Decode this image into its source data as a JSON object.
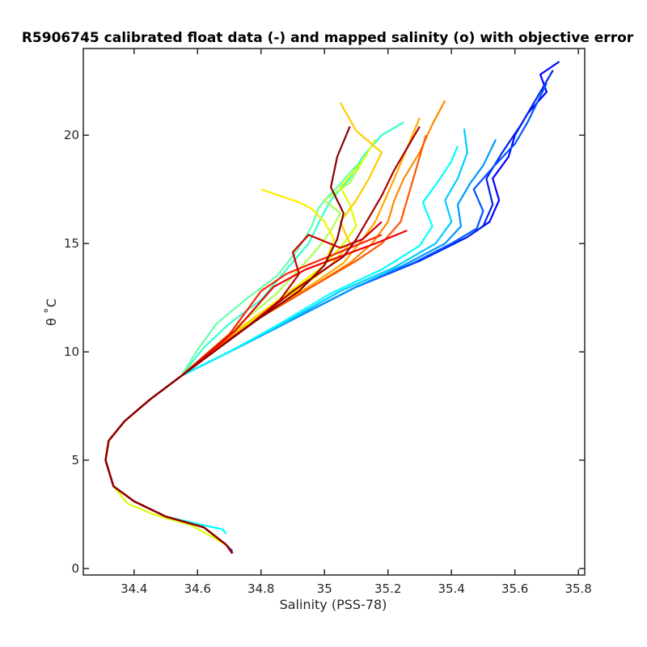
{
  "chart_data": {
    "type": "line",
    "title": "R5906745 calibrated float data (-) and mapped salinity (o) with objective error",
    "xlabel": "Salinity (PSS-78)",
    "ylabel": "θ ˚C",
    "xlim": [
      34.24,
      35.82
    ],
    "ylim": [
      -0.3,
      24.0
    ],
    "xticks": [
      "34.4",
      "34.6",
      "34.8",
      "35",
      "35.2",
      "35.4",
      "35.6",
      "35.8"
    ],
    "yticks": [
      "0",
      "5",
      "10",
      "15",
      "20"
    ],
    "grid": false,
    "legend": "none",
    "colormap": "jet",
    "series": [
      {
        "color": "#0000ff",
        "x": [
          34.71,
          34.69,
          34.62,
          34.5,
          34.4,
          34.335,
          34.31,
          34.32,
          34.37,
          34.45,
          34.55,
          34.7,
          34.9,
          35.1,
          35.3,
          35.45,
          35.52,
          35.55,
          35.53,
          35.58,
          35.6,
          35.64,
          35.7,
          35.68,
          35.74
        ],
        "y": [
          0.7,
          1.1,
          1.9,
          2.4,
          3.1,
          3.8,
          5.0,
          5.9,
          6.8,
          7.8,
          8.9,
          10.0,
          11.5,
          13.0,
          14.2,
          15.3,
          16.0,
          17.0,
          18.0,
          19.0,
          20.0,
          21.0,
          22.0,
          22.8,
          23.4
        ]
      },
      {
        "color": "#0022ee",
        "x": [
          34.71,
          34.69,
          34.62,
          34.5,
          34.4,
          34.335,
          34.31,
          34.32,
          34.37,
          34.45,
          34.55,
          34.7,
          34.9,
          35.1,
          35.3,
          35.45,
          35.5,
          35.53,
          35.51,
          35.56,
          35.62,
          35.66,
          35.72
        ],
        "y": [
          0.8,
          1.1,
          1.9,
          2.4,
          3.1,
          3.8,
          5.0,
          5.9,
          6.8,
          7.8,
          8.9,
          10.0,
          11.5,
          13.0,
          14.2,
          15.3,
          15.8,
          16.8,
          18.0,
          19.2,
          20.5,
          21.5,
          23.0
        ]
      },
      {
        "color": "#0055ff",
        "x": [
          34.71,
          34.69,
          34.62,
          34.5,
          34.4,
          34.335,
          34.31,
          34.32,
          34.37,
          34.45,
          34.55,
          34.7,
          34.9,
          35.1,
          35.28,
          35.4,
          35.48,
          35.5,
          35.47,
          35.53,
          35.6,
          35.64,
          35.7
        ],
        "y": [
          0.7,
          1.1,
          1.9,
          2.4,
          3.1,
          3.8,
          5.0,
          5.9,
          6.8,
          7.8,
          8.9,
          10.0,
          11.5,
          13.0,
          14.1,
          15.0,
          15.7,
          16.5,
          17.5,
          18.5,
          19.6,
          20.6,
          22.4
        ]
      },
      {
        "color": "#0099ff",
        "x": [
          34.71,
          34.69,
          34.62,
          34.5,
          34.4,
          34.335,
          34.31,
          34.32,
          34.37,
          34.45,
          34.55,
          34.7,
          34.9,
          35.1,
          35.25,
          35.38,
          35.43,
          35.42,
          35.46,
          35.5,
          35.54
        ],
        "y": [
          0.7,
          1.1,
          1.9,
          2.4,
          3.1,
          3.8,
          5.0,
          5.9,
          6.8,
          7.8,
          8.9,
          10.0,
          11.5,
          13.0,
          14.0,
          15.0,
          15.8,
          16.8,
          17.8,
          18.6,
          19.8
        ]
      },
      {
        "color": "#00ccff",
        "x": [
          34.71,
          34.69,
          34.62,
          34.5,
          34.4,
          34.335,
          34.31,
          34.32,
          34.37,
          34.45,
          34.55,
          34.7,
          34.88,
          35.05,
          35.22,
          35.35,
          35.4,
          35.38,
          35.42,
          35.45,
          35.44
        ],
        "y": [
          0.7,
          1.1,
          1.9,
          2.4,
          3.1,
          3.8,
          5.0,
          5.9,
          6.8,
          7.8,
          8.9,
          10.0,
          11.4,
          12.8,
          13.9,
          15.0,
          16.0,
          17.0,
          18.0,
          19.2,
          20.3
        ]
      },
      {
        "color": "#00ffff",
        "x": [
          34.69,
          34.68,
          34.62,
          34.5,
          34.4,
          34.335,
          34.31,
          34.32,
          34.37,
          34.45,
          34.55,
          34.7,
          34.86,
          35.02,
          35.18,
          35.3,
          35.34,
          35.31,
          35.36,
          35.4,
          35.42
        ],
        "y": [
          1.6,
          1.8,
          2.0,
          2.4,
          3.1,
          3.8,
          5.0,
          5.9,
          6.8,
          7.8,
          8.9,
          10.0,
          11.3,
          12.7,
          13.8,
          14.9,
          15.8,
          16.9,
          17.9,
          18.8,
          19.5
        ]
      },
      {
        "color": "#33ffcc",
        "x": [
          34.71,
          34.69,
          34.62,
          34.5,
          34.4,
          34.335,
          34.31,
          34.32,
          34.37,
          34.45,
          34.55,
          34.62,
          34.7,
          34.8,
          34.88,
          34.95,
          34.99,
          35.02,
          35.08,
          35.12,
          35.18,
          35.25
        ],
        "y": [
          0.7,
          1.1,
          1.9,
          2.4,
          3.1,
          3.8,
          5.0,
          5.9,
          6.8,
          7.8,
          8.9,
          10.2,
          11.3,
          12.4,
          13.8,
          15.0,
          16.2,
          17.0,
          18.0,
          19.0,
          20.0,
          20.6
        ]
      },
      {
        "color": "#66ffaa",
        "x": [
          34.71,
          34.69,
          34.62,
          34.5,
          34.4,
          34.335,
          34.31,
          34.32,
          34.37,
          34.45,
          34.55,
          34.6,
          34.66,
          34.75,
          34.85,
          34.92,
          34.96,
          34.98,
          35.0,
          35.04,
          35.1
        ],
        "y": [
          0.7,
          1.1,
          1.9,
          2.4,
          3.1,
          3.8,
          5.0,
          5.9,
          6.8,
          7.8,
          8.9,
          10.1,
          11.3,
          12.4,
          13.5,
          14.8,
          15.8,
          16.6,
          17.0,
          17.6,
          18.6
        ]
      },
      {
        "color": "#aaff55",
        "x": [
          34.71,
          34.69,
          34.62,
          34.5,
          34.4,
          34.335,
          34.31,
          34.32,
          34.37,
          34.45,
          34.55,
          34.65,
          34.75,
          34.85,
          34.92,
          34.98,
          35.02,
          35.05,
          35.0,
          35.08,
          35.12
        ],
        "y": [
          0.7,
          1.1,
          1.9,
          2.4,
          3.1,
          3.8,
          5.0,
          5.9,
          6.8,
          7.8,
          8.9,
          10.2,
          11.5,
          12.7,
          13.8,
          14.8,
          15.6,
          16.4,
          17.0,
          17.8,
          18.8
        ]
      },
      {
        "color": "#ddff00",
        "x": [
          34.71,
          34.69,
          34.58,
          34.46,
          34.38,
          34.335,
          34.31,
          34.32,
          34.37,
          34.45,
          34.55,
          34.66,
          34.78,
          34.9,
          35.0,
          35.06,
          35.1,
          35.08,
          35.05,
          35.12,
          35.16
        ],
        "y": [
          0.7,
          1.1,
          2.0,
          2.5,
          3.0,
          3.8,
          5.0,
          5.9,
          6.8,
          7.8,
          8.9,
          10.3,
          11.5,
          12.8,
          14.0,
          15.0,
          15.8,
          16.8,
          17.6,
          18.8,
          19.8
        ]
      },
      {
        "color": "#ffee00",
        "x": [
          34.71,
          34.69,
          34.62,
          34.5,
          34.4,
          34.335,
          34.31,
          34.32,
          34.37,
          34.45,
          34.55,
          34.66,
          34.78,
          34.9,
          35.0,
          35.03,
          35.0,
          34.96,
          34.92,
          34.86,
          34.8
        ],
        "y": [
          0.7,
          1.1,
          1.9,
          2.4,
          3.1,
          3.8,
          5.0,
          5.9,
          6.8,
          7.8,
          8.9,
          10.3,
          11.6,
          12.9,
          14.0,
          15.2,
          16.0,
          16.6,
          16.9,
          17.2,
          17.5
        ]
      },
      {
        "color": "#ffcc00",
        "x": [
          34.71,
          34.69,
          34.62,
          34.5,
          34.4,
          34.335,
          34.31,
          34.32,
          34.37,
          34.45,
          34.55,
          34.66,
          34.78,
          34.92,
          35.02,
          35.08,
          35.05,
          35.1,
          35.14,
          35.18,
          35.1,
          35.05
        ],
        "y": [
          0.7,
          1.1,
          1.9,
          2.4,
          3.1,
          3.8,
          5.0,
          5.9,
          6.8,
          7.8,
          8.9,
          10.2,
          11.6,
          12.9,
          14.0,
          15.0,
          16.0,
          17.0,
          18.0,
          19.2,
          20.2,
          21.5
        ]
      },
      {
        "color": "#ffaa00",
        "x": [
          34.71,
          34.69,
          34.62,
          34.5,
          34.4,
          34.335,
          34.31,
          34.32,
          34.37,
          34.45,
          34.55,
          34.66,
          34.8,
          34.95,
          35.06,
          35.12,
          35.16,
          35.19,
          35.22,
          35.26,
          35.3
        ],
        "y": [
          0.7,
          1.1,
          1.9,
          2.4,
          3.1,
          3.8,
          5.0,
          5.9,
          6.8,
          7.8,
          8.9,
          10.2,
          11.6,
          13.0,
          14.1,
          15.2,
          16.0,
          17.0,
          18.0,
          19.4,
          20.8
        ]
      },
      {
        "color": "#ff8800",
        "x": [
          34.71,
          34.69,
          34.62,
          34.5,
          34.4,
          34.335,
          34.31,
          34.32,
          34.37,
          34.45,
          34.55,
          34.66,
          34.8,
          34.96,
          35.08,
          35.15,
          35.2,
          35.22,
          35.25,
          35.3,
          35.34,
          35.38
        ],
        "y": [
          0.7,
          1.1,
          1.9,
          2.4,
          3.1,
          3.8,
          5.0,
          5.9,
          6.8,
          7.8,
          8.9,
          10.2,
          11.6,
          13.0,
          14.1,
          15.0,
          16.0,
          17.0,
          18.0,
          19.2,
          20.5,
          21.6
        ]
      },
      {
        "color": "#ff5500",
        "x": [
          34.71,
          34.69,
          34.62,
          34.5,
          34.4,
          34.335,
          34.31,
          34.32,
          34.37,
          34.45,
          34.55,
          34.66,
          34.8,
          34.96,
          35.1,
          35.18,
          35.24,
          35.26,
          35.28,
          35.3,
          35.32
        ],
        "y": [
          0.7,
          1.1,
          1.9,
          2.4,
          3.1,
          3.8,
          5.0,
          5.9,
          6.8,
          7.8,
          8.9,
          10.2,
          11.6,
          13.0,
          14.2,
          15.0,
          16.0,
          17.0,
          18.0,
          19.0,
          20.0
        ]
      },
      {
        "color": "#ff2200",
        "x": [
          34.71,
          34.69,
          34.62,
          34.5,
          34.4,
          34.335,
          34.31,
          34.32,
          34.37,
          34.45,
          34.55,
          34.62,
          34.7,
          34.75,
          34.8,
          34.88,
          34.98,
          35.08,
          35.18
        ],
        "y": [
          0.7,
          1.1,
          1.9,
          2.4,
          3.1,
          3.8,
          5.0,
          5.9,
          6.8,
          7.8,
          8.9,
          9.8,
          10.8,
          11.8,
          12.8,
          13.6,
          14.2,
          14.8,
          15.4
        ]
      },
      {
        "color": "#ee0000",
        "x": [
          34.71,
          34.69,
          34.62,
          34.5,
          34.4,
          34.335,
          34.31,
          34.32,
          34.37,
          34.45,
          34.55,
          34.64,
          34.72,
          34.78,
          34.84,
          34.94,
          35.05,
          35.16,
          35.26
        ],
        "y": [
          0.7,
          1.1,
          1.9,
          2.4,
          3.1,
          3.8,
          5.0,
          5.9,
          6.8,
          7.8,
          8.9,
          10.0,
          11.0,
          12.0,
          13.0,
          13.8,
          14.4,
          15.0,
          15.6
        ]
      },
      {
        "color": "#cc0000",
        "x": [
          34.71,
          34.69,
          34.62,
          34.5,
          34.4,
          34.335,
          34.31,
          34.32,
          34.37,
          34.45,
          34.55,
          34.66,
          34.76,
          34.86,
          34.92,
          34.9,
          34.95,
          35.05,
          35.12,
          35.18
        ],
        "y": [
          0.7,
          1.1,
          1.9,
          2.4,
          3.1,
          3.8,
          5.0,
          5.9,
          6.8,
          7.8,
          8.9,
          10.1,
          11.2,
          12.4,
          13.6,
          14.6,
          15.4,
          14.8,
          15.2,
          16.0
        ]
      },
      {
        "color": "#aa0000",
        "x": [
          34.71,
          34.69,
          34.62,
          34.5,
          34.4,
          34.335,
          34.31,
          34.32,
          34.37,
          34.45,
          34.55,
          34.66,
          34.78,
          34.9,
          35.0,
          35.06,
          35.1,
          35.14,
          35.18,
          35.22,
          35.26,
          35.3
        ],
        "y": [
          0.7,
          1.1,
          1.9,
          2.4,
          3.1,
          3.8,
          5.0,
          5.9,
          6.8,
          7.8,
          8.9,
          10.1,
          11.4,
          12.8,
          13.8,
          14.4,
          15.2,
          16.2,
          17.2,
          18.4,
          19.4,
          20.4
        ]
      },
      {
        "color": "#8b0000",
        "x": [
          34.71,
          34.69,
          34.62,
          34.5,
          34.4,
          34.335,
          34.31,
          34.32,
          34.37,
          34.45,
          34.55,
          34.66,
          34.78,
          34.92,
          35.0,
          35.04,
          35.06,
          35.02,
          35.04,
          35.08
        ],
        "y": [
          0.7,
          1.1,
          1.9,
          2.4,
          3.1,
          3.8,
          5.0,
          5.9,
          6.8,
          7.8,
          8.9,
          10.1,
          11.4,
          12.8,
          14.0,
          15.2,
          16.4,
          17.6,
          19.0,
          20.4
        ]
      }
    ]
  }
}
